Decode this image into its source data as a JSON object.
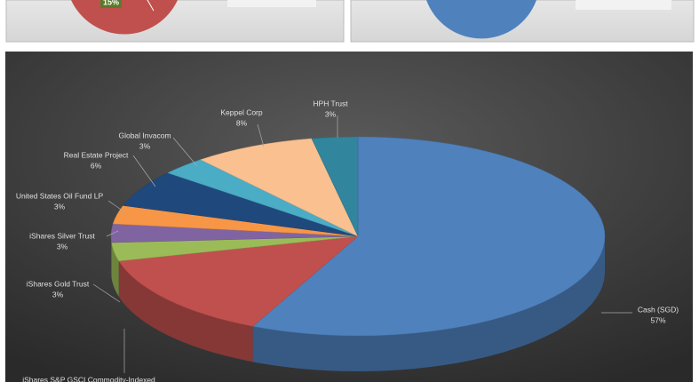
{
  "chart_data": [
    {
      "type": "pie",
      "values": [
        15
      ],
      "value_labels": [
        "15%"
      ],
      "colors": [
        "#9bbb59"
      ]
    },
    {
      "type": "pie3d",
      "categories": [
        "Cash (SGD)",
        "iShares S&P GSCI Commodity-Indexed",
        "iShares Gold Trust",
        "iShares Silver Trust",
        "United States Oil Fund LP",
        "Real Estate Project",
        "Global Invacom",
        "Keppel Corp",
        "HPH Trust"
      ],
      "values": [
        57,
        14,
        3,
        3,
        3,
        6,
        3,
        8,
        3
      ],
      "value_labels": [
        "57%",
        null,
        "3%",
        "3%",
        "3%",
        "6%",
        "3%",
        "8%",
        "3%"
      ],
      "colors": [
        "#4f81bd",
        "#c0504d",
        "#9bbb59",
        "#8064a2",
        "#f79646",
        "#1f497d",
        "#4bacc6",
        "#fac090",
        "#31859c"
      ]
    }
  ]
}
